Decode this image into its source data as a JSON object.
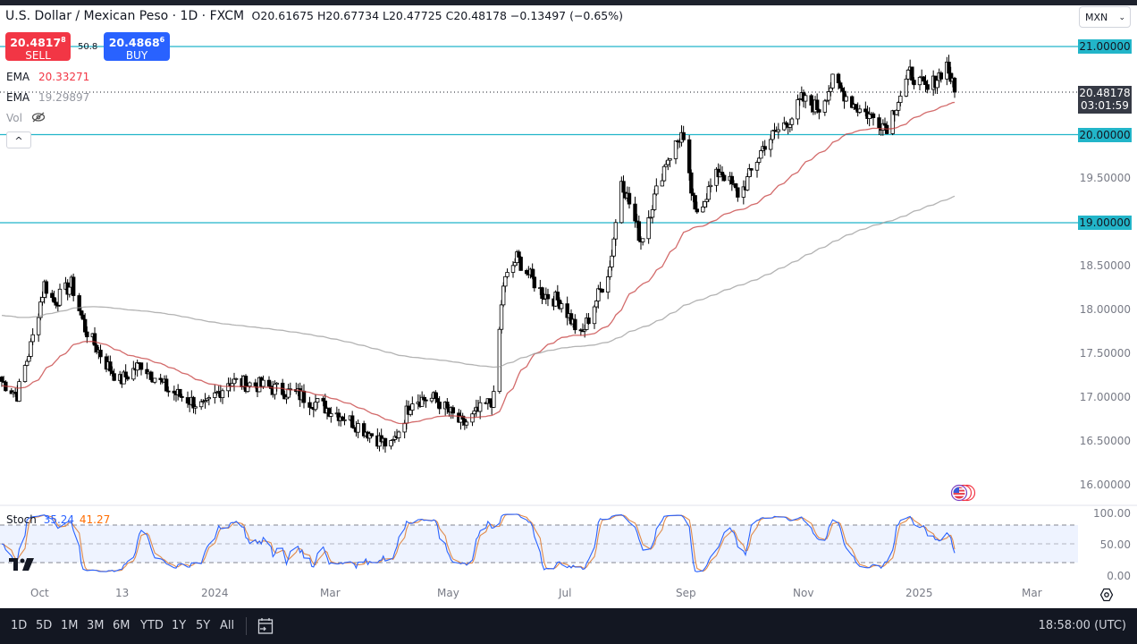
{
  "header": {
    "title": "U.S. Dollar / Mexican Peso · 1D · FXCM",
    "ohlc": "O20.61675 H20.67734 L20.47725 C20.48178 −0.13497 (−0.65%)"
  },
  "trade": {
    "sell_price": "20.4817",
    "sell_sup": "8",
    "sell_label": "SELL",
    "buy_price": "20.4868",
    "buy_sup": "6",
    "buy_label": "BUY",
    "spread": "50.8"
  },
  "legend": {
    "ema1_label": "EMA",
    "ema1_value": "20.33271",
    "ema1_color": "#f23645",
    "ema2_label": "EMA",
    "ema2_value": "19.29897",
    "ema2_color": "#9598a1",
    "vol_label": "Vol",
    "collapse_glyph": "^"
  },
  "currency": {
    "selected": "MXN",
    "chevron": "⌄"
  },
  "price_axis": {
    "ticks": [
      "21.00000",
      "20.00000",
      "19.50000",
      "19.00000",
      "18.50000",
      "18.00000",
      "17.50000",
      "17.00000",
      "16.50000",
      "16.00000"
    ],
    "last_price": "20.48178",
    "countdown": "03:01:59"
  },
  "stoch": {
    "label": "Stoch",
    "k_value": "35.24",
    "d_value": "41.27",
    "k_color": "#2962ff",
    "d_color": "#ff6d00",
    "axis": [
      "100.00",
      "50.00",
      "0.00"
    ]
  },
  "time_axis": [
    "Oct",
    "13",
    "2024",
    "Mar",
    "May",
    "Jul",
    "Sep",
    "Nov",
    "2025",
    "Mar"
  ],
  "bottombar": {
    "ranges": [
      "1D",
      "5D",
      "1M",
      "3M",
      "6M",
      "YTD",
      "1Y",
      "5Y",
      "All"
    ],
    "clock": "18:58:00 (UTC)"
  },
  "chart_data": {
    "type": "candlestick",
    "title": "U.S. Dollar / Mexican Peso · 1D · FXCM",
    "xlabel": "",
    "ylabel": "USD/MXN",
    "ylim": [
      15.9,
      21.5
    ],
    "x_ticks": [
      "Oct",
      "13",
      "2024",
      "Mar",
      "May",
      "Jul",
      "Sep",
      "Nov",
      "2025",
      "Mar"
    ],
    "horizontal_lines": [
      21.0,
      20.0,
      19.0
    ],
    "approx_close_path": [
      {
        "x": "2023-09-20",
        "close": 17.2
      },
      {
        "x": "2023-09-28",
        "close": 17.05
      },
      {
        "x": "2023-10-05",
        "close": 17.6
      },
      {
        "x": "2023-10-12",
        "close": 18.3
      },
      {
        "x": "2023-10-17",
        "close": 18.1
      },
      {
        "x": "2023-10-26",
        "close": 18.3
      },
      {
        "x": "2023-11-02",
        "close": 17.8
      },
      {
        "x": "2023-11-13",
        "close": 17.4
      },
      {
        "x": "2023-11-20",
        "close": 17.2
      },
      {
        "x": "2023-12-01",
        "close": 17.4
      },
      {
        "x": "2023-12-15",
        "close": 17.1
      },
      {
        "x": "2024-01-03",
        "close": 16.9
      },
      {
        "x": "2024-01-15",
        "close": 17.2
      },
      {
        "x": "2024-02-01",
        "close": 17.15
      },
      {
        "x": "2024-02-20",
        "close": 17.05
      },
      {
        "x": "2024-03-15",
        "close": 16.8
      },
      {
        "x": "2024-04-08",
        "close": 16.45
      },
      {
        "x": "2024-04-19",
        "close": 17.0
      },
      {
        "x": "2024-05-01",
        "close": 17.0
      },
      {
        "x": "2024-05-15",
        "close": 16.7
      },
      {
        "x": "2024-05-31",
        "close": 17.0
      },
      {
        "x": "2024-06-05",
        "close": 18.3
      },
      {
        "x": "2024-06-12",
        "close": 18.6
      },
      {
        "x": "2024-06-25",
        "close": 18.2
      },
      {
        "x": "2024-07-05",
        "close": 18.1
      },
      {
        "x": "2024-07-15",
        "close": 17.7
      },
      {
        "x": "2024-07-30",
        "close": 18.5
      },
      {
        "x": "2024-08-05",
        "close": 19.5
      },
      {
        "x": "2024-08-15",
        "close": 18.8
      },
      {
        "x": "2024-08-28",
        "close": 19.7
      },
      {
        "x": "2024-09-05",
        "close": 20.0
      },
      {
        "x": "2024-09-12",
        "close": 19.1
      },
      {
        "x": "2024-09-25",
        "close": 19.6
      },
      {
        "x": "2024-10-05",
        "close": 19.3
      },
      {
        "x": "2024-10-18",
        "close": 19.9
      },
      {
        "x": "2024-11-01",
        "close": 20.2
      },
      {
        "x": "2024-11-06",
        "close": 20.4
      },
      {
        "x": "2024-11-15",
        "close": 20.3
      },
      {
        "x": "2024-11-22",
        "close": 20.6
      },
      {
        "x": "2024-12-05",
        "close": 20.3
      },
      {
        "x": "2024-12-20",
        "close": 20.1
      },
      {
        "x": "2025-01-01",
        "close": 20.7
      },
      {
        "x": "2025-01-10",
        "close": 20.5
      },
      {
        "x": "2025-01-20",
        "close": 20.8
      },
      {
        "x": "2025-01-24",
        "close": 20.48
      }
    ],
    "series": [
      {
        "name": "EMA 50",
        "color": "#f23645",
        "last": 20.33271
      },
      {
        "name": "EMA 200",
        "color": "#9598a1",
        "last": 19.29897
      }
    ],
    "last": {
      "open": 20.61675,
      "high": 20.67734,
      "low": 20.47725,
      "close": 20.48178,
      "change": -0.13497,
      "change_pct": -0.65
    },
    "indicator": {
      "name": "Stoch",
      "k": 35.24,
      "d": 41.27,
      "bands": [
        80,
        50,
        20
      ],
      "ylim": [
        0,
        100
      ]
    }
  }
}
